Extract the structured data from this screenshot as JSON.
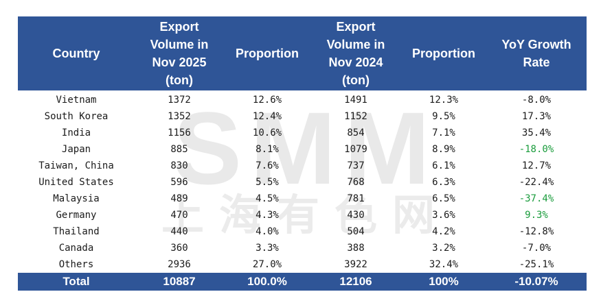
{
  "table": {
    "headers": [
      [
        "Country"
      ],
      [
        "Export",
        "Volume in",
        "Nov 2025",
        "(ton)"
      ],
      [
        "Proportion"
      ],
      [
        "Export",
        "Volume in",
        "Nov 2024",
        "(ton)"
      ],
      [
        "Proportion"
      ],
      [
        "YoY Growth",
        "Rate"
      ]
    ],
    "rows": [
      {
        "country": "Vietnam",
        "vol_2025": "1372",
        "prop_2025": "12.6%",
        "vol_2024": "1491",
        "prop_2024": "12.3%",
        "yoy": "-8.0%",
        "yoy_color": "#1a1a1a"
      },
      {
        "country": "South Korea",
        "vol_2025": "1352",
        "prop_2025": "12.4%",
        "vol_2024": "1152",
        "prop_2024": "9.5%",
        "yoy": "17.3%",
        "yoy_color": "#1a1a1a"
      },
      {
        "country": "India",
        "vol_2025": "1156",
        "prop_2025": "10.6%",
        "vol_2024": "854",
        "prop_2024": "7.1%",
        "yoy": "35.4%",
        "yoy_color": "#1a1a1a"
      },
      {
        "country": "Japan",
        "vol_2025": "885",
        "prop_2025": "8.1%",
        "vol_2024": "1079",
        "prop_2024": "8.9%",
        "yoy": "-18.0%",
        "yoy_color": "#1a9c3c"
      },
      {
        "country": "Taiwan, China",
        "vol_2025": "830",
        "prop_2025": "7.6%",
        "vol_2024": "737",
        "prop_2024": "6.1%",
        "yoy": "12.7%",
        "yoy_color": "#1a1a1a"
      },
      {
        "country": "United States",
        "vol_2025": "596",
        "prop_2025": "5.5%",
        "vol_2024": "768",
        "prop_2024": "6.3%",
        "yoy": "-22.4%",
        "yoy_color": "#1a1a1a"
      },
      {
        "country": "Malaysia",
        "vol_2025": "489",
        "prop_2025": "4.5%",
        "vol_2024": "781",
        "prop_2024": "6.5%",
        "yoy": "-37.4%",
        "yoy_color": "#1a9c3c"
      },
      {
        "country": "Germany",
        "vol_2025": "470",
        "prop_2025": "4.3%",
        "vol_2024": "430",
        "prop_2024": "3.6%",
        "yoy": "9.3%",
        "yoy_color": "#1a9c3c"
      },
      {
        "country": "Thailand",
        "vol_2025": "440",
        "prop_2025": "4.0%",
        "vol_2024": "504",
        "prop_2024": "4.2%",
        "yoy": "-12.8%",
        "yoy_color": "#1a1a1a"
      },
      {
        "country": "Canada",
        "vol_2025": "360",
        "prop_2025": "3.3%",
        "vol_2024": "388",
        "prop_2024": "3.2%",
        "yoy": "-7.0%",
        "yoy_color": "#1a1a1a"
      },
      {
        "country": "Others",
        "vol_2025": "2936",
        "prop_2025": "27.0%",
        "vol_2024": "3922",
        "prop_2024": "32.4%",
        "yoy": "-25.1%",
        "yoy_color": "#1a1a1a"
      }
    ],
    "total": {
      "label": "Total",
      "vol_2025": "10887",
      "prop_2025": "100.0%",
      "vol_2024": "12106",
      "prop_2024": "100%",
      "yoy": "-10.07%"
    }
  },
  "watermark": {
    "logo_text": "SMM",
    "subtitle_text": "上海有色网"
  },
  "colors": {
    "header_bg": "#2f5597",
    "header_text": "#ffffff",
    "positive_green": "#1a9c3c",
    "body_text": "#1a1a1a"
  }
}
